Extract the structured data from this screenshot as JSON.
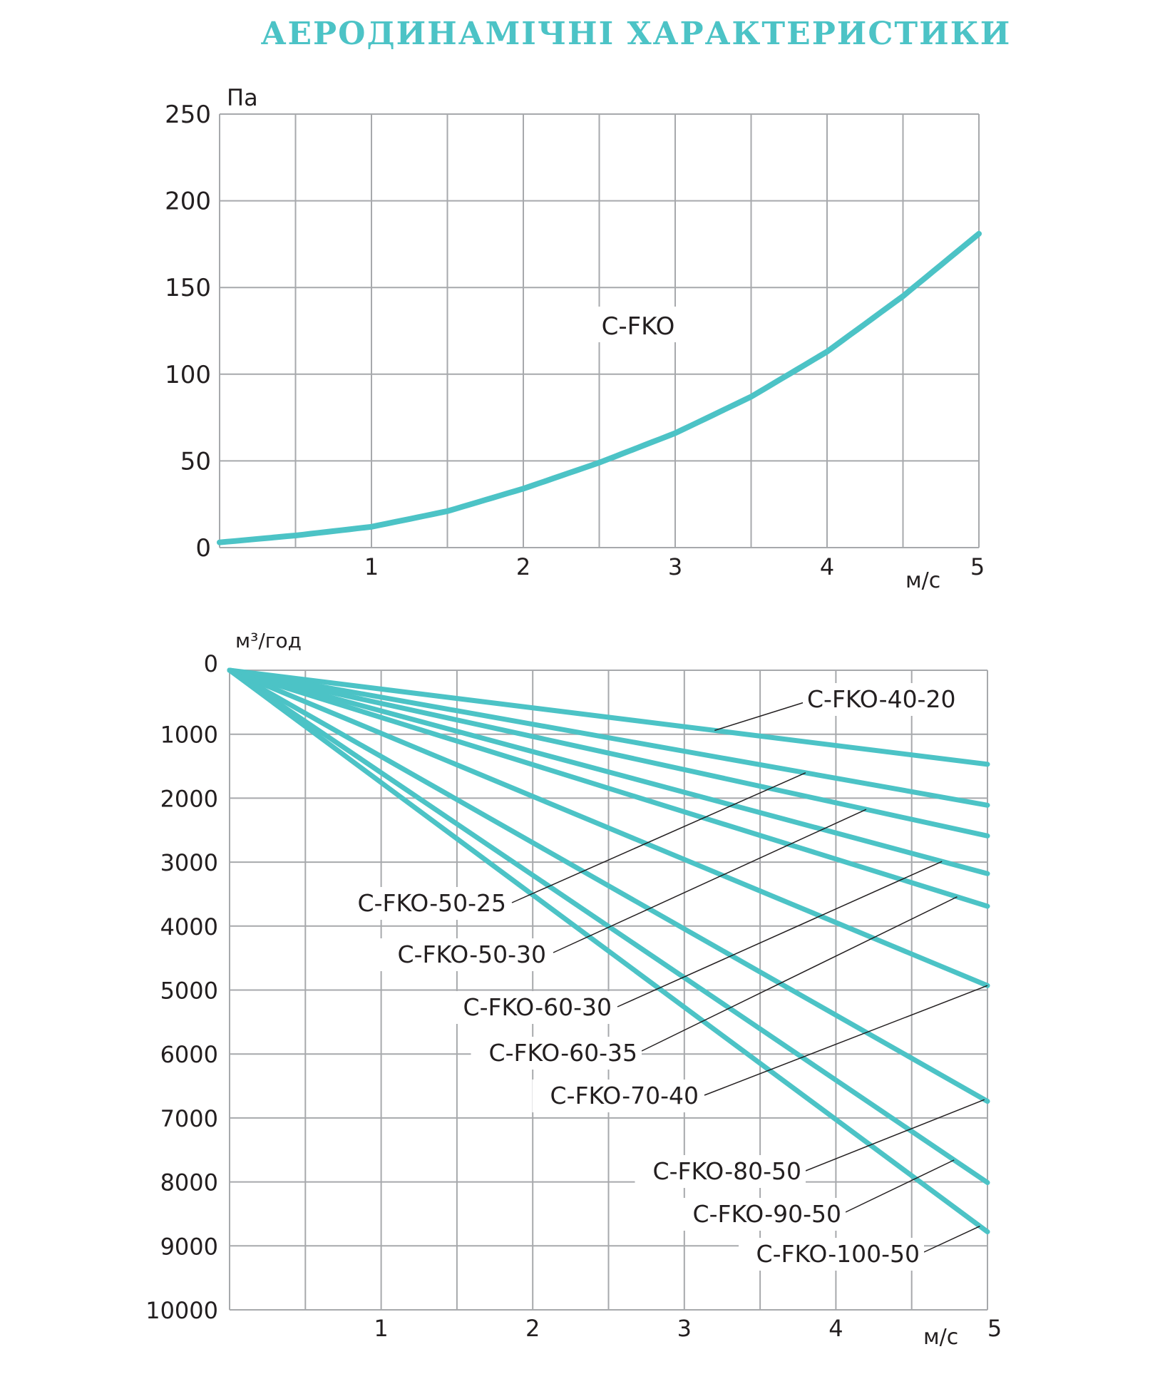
{
  "page": {
    "title": "АЕРОДИНАМІЧНІ ХАРАКТЕРИСТИКИ",
    "accent_color": "#4cc3c6",
    "grid_color": "#a7a9ac"
  },
  "chart_data": [
    {
      "type": "line",
      "ylabel": "Па",
      "xlabel": "м/с",
      "xlim": [
        0,
        5
      ],
      "ylim": [
        0,
        250
      ],
      "x_ticks": [
        "1",
        "2",
        "3",
        "4",
        "5"
      ],
      "y_ticks": [
        "0",
        "50",
        "100",
        "150",
        "200",
        "250"
      ],
      "grid": true,
      "series": [
        {
          "name": "C-FKO",
          "x": [
            0,
            0.5,
            1,
            1.5,
            2,
            2.5,
            3,
            3.5,
            4,
            4.5,
            5
          ],
          "y": [
            3,
            7,
            12,
            21,
            34,
            49,
            66,
            87,
            113,
            145,
            181
          ]
        }
      ]
    },
    {
      "type": "line",
      "ylabel": "м³/год",
      "xlabel": "м/с",
      "xlim": [
        0,
        5
      ],
      "ylim": [
        0,
        10000
      ],
      "y_inverted": true,
      "x_ticks": [
        "1",
        "2",
        "3",
        "4",
        "5"
      ],
      "y_ticks": [
        "0",
        "1000",
        "2000",
        "3000",
        "4000",
        "5000",
        "6000",
        "7000",
        "8000",
        "9000",
        "10000"
      ],
      "grid": true,
      "series": [
        {
          "name": "C-FKO-40-20",
          "x": [
            0,
            5
          ],
          "y": [
            0,
            1470
          ]
        },
        {
          "name": "C-FKO-50-25",
          "x": [
            0,
            5
          ],
          "y": [
            0,
            2110
          ]
        },
        {
          "name": "C-FKO-50-30",
          "x": [
            0,
            5
          ],
          "y": [
            0,
            2590
          ]
        },
        {
          "name": "C-FKO-60-30",
          "x": [
            0,
            5
          ],
          "y": [
            0,
            3180
          ]
        },
        {
          "name": "C-FKO-60-35",
          "x": [
            0,
            5
          ],
          "y": [
            0,
            3690
          ]
        },
        {
          "name": "C-FKO-70-40",
          "x": [
            0,
            5
          ],
          "y": [
            0,
            4930
          ]
        },
        {
          "name": "C-FKO-80-50",
          "x": [
            0,
            5
          ],
          "y": [
            0,
            6740
          ]
        },
        {
          "name": "C-FKO-90-50",
          "x": [
            0,
            5
          ],
          "y": [
            0,
            8010
          ]
        },
        {
          "name": "C-FKO-100-50",
          "x": [
            0,
            5
          ],
          "y": [
            0,
            8780
          ]
        }
      ]
    }
  ]
}
